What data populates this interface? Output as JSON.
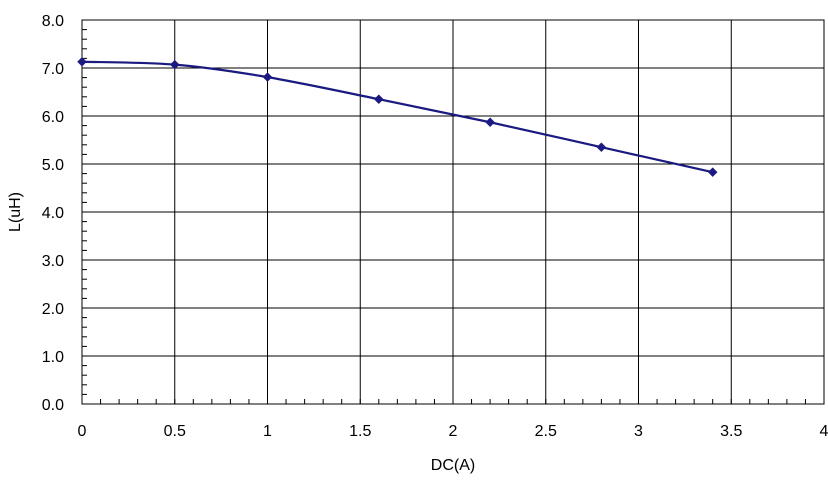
{
  "chart_data": {
    "type": "line",
    "title": "",
    "xlabel": "DC(A)",
    "ylabel": "L(uH)",
    "xlim": [
      0,
      4
    ],
    "ylim": [
      0,
      8
    ],
    "x_ticks": [
      "0",
      "0.5",
      "1",
      "1.5",
      "2",
      "2.5",
      "3",
      "3.5",
      "4"
    ],
    "y_ticks": [
      "0.0",
      "1.0",
      "2.0",
      "3.0",
      "4.0",
      "5.0",
      "6.0",
      "7.0",
      "8.0"
    ],
    "grid": true,
    "series": [
      {
        "x": [
          0,
          0.5,
          1.0,
          1.6,
          2.2,
          2.8,
          3.4
        ],
        "y": [
          7.13,
          7.07,
          6.81,
          6.35,
          5.87,
          5.35,
          4.83
        ],
        "color": "#1a1a80",
        "marker": "diamond"
      }
    ]
  }
}
